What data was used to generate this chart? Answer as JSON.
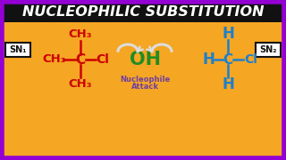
{
  "bg_color": "#F5A623",
  "border_color": "#9400D3",
  "title_text": "NUCLEOPHILIC SUBSTITUTION",
  "title_bg": "#111111",
  "title_color": "#FFFFFF",
  "sn1_label": "SN₁",
  "sn2_label": "SN₂",
  "red_color": "#CC0000",
  "blue_color": "#1E7FCC",
  "green_color": "#228B22",
  "purple_color": "#7040A0",
  "black_color": "#111111",
  "white_color": "#FFFFFF",
  "arrow_color": "#DDDDDD"
}
